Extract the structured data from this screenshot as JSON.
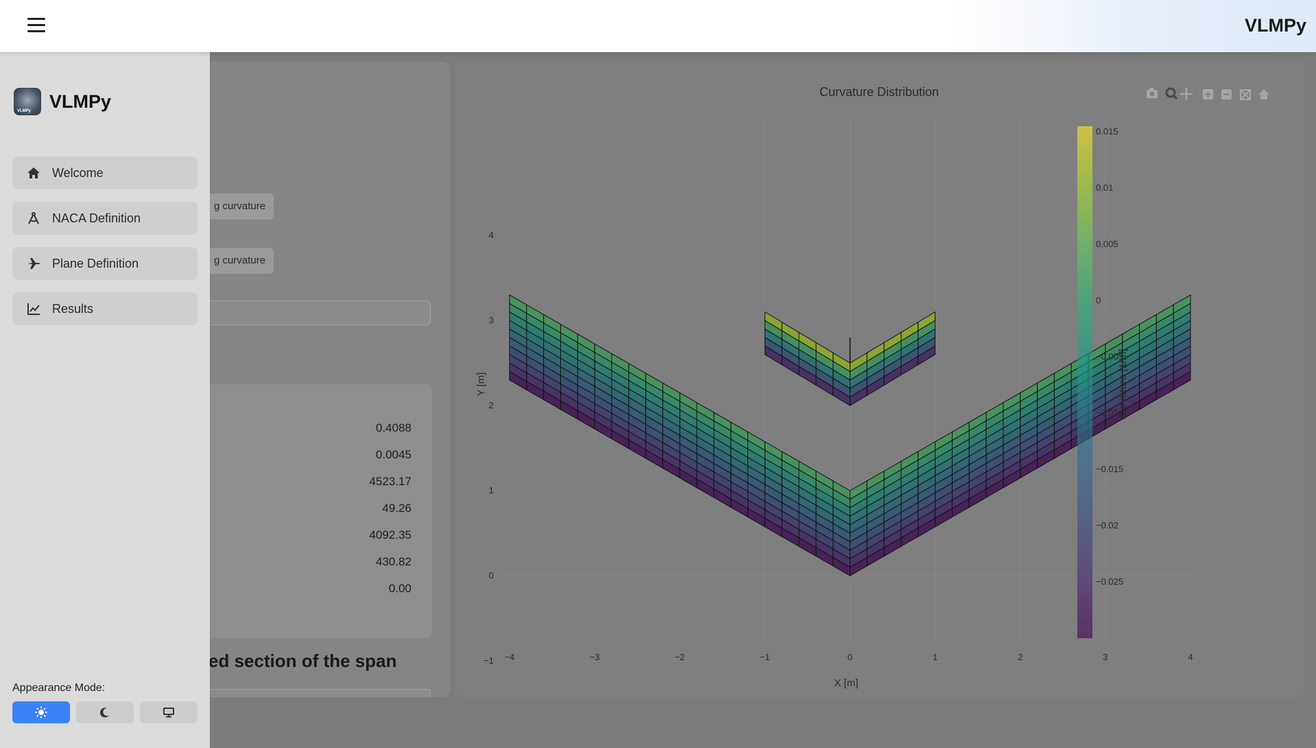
{
  "header": {
    "title": "VLMPy"
  },
  "sidebar": {
    "brand": "VLMPy",
    "items": [
      {
        "label": "Welcome",
        "icon": "home-icon"
      },
      {
        "label": "NACA Definition",
        "icon": "compass-icon"
      },
      {
        "label": "Plane Definition",
        "icon": "plane-icon"
      },
      {
        "label": "Results",
        "icon": "line-chart-icon"
      }
    ],
    "appearance_label": "Appearance Mode:",
    "modes": [
      {
        "name": "light",
        "icon": "sun-icon",
        "active": true
      },
      {
        "name": "dark",
        "icon": "moon-icon",
        "active": false
      },
      {
        "name": "system",
        "icon": "monitor-icon",
        "active": false
      }
    ]
  },
  "left_panel": {
    "chip1": "g curvature",
    "chip2": "g curvature",
    "results": [
      "0.4088",
      "0.0045",
      "4523.17",
      "49.26",
      "4092.35",
      "430.82",
      "0.00"
    ],
    "section_title": "ed section of the span"
  },
  "plot": {
    "toolbar_icons": [
      "camera-icon",
      "zoom-icon",
      "pan-icon",
      "zoom-in-icon",
      "zoom-out-icon",
      "autoscale-icon",
      "reset-axes-icon"
    ]
  },
  "chart_data": {
    "type": "heatmap",
    "title": "Curvature Distribution",
    "xlabel": "X [m]",
    "ylabel": "Y [m]",
    "xlim": [
      -4,
      4
    ],
    "ylim": [
      -1,
      4.5
    ],
    "x_ticks": [
      -4,
      -3,
      -2,
      -1,
      0,
      1,
      2,
      3,
      4
    ],
    "y_ticks": [
      -1,
      0,
      1,
      2,
      3,
      4
    ],
    "grid": true,
    "colorbar": {
      "title": "Curvature [1/m]",
      "range": [
        -0.03,
        0.0155
      ],
      "ticks": [
        0.015,
        0.01,
        0.005,
        0,
        -0.005,
        -0.01,
        -0.015,
        -0.02,
        -0.025
      ],
      "tick_labels": [
        "0.015",
        "0.01",
        "0.005",
        "0",
        "−0.005",
        "−0.01",
        "−0.015",
        "−0.02",
        "−0.025"
      ],
      "colorscale": "Viridis"
    },
    "surfaces": [
      {
        "name": "wing",
        "semispan": 4,
        "root_le_y": 1.0,
        "root_te_y": 0.0,
        "tip_le_y": 3.3,
        "tip_te_y": 2.3,
        "spanwise_panels": 40,
        "chordwise_panels": 10,
        "curvature_le": 0.004,
        "curvature_te": -0.03
      },
      {
        "name": "tail",
        "semispan": 1,
        "root_le_y": 2.5,
        "root_te_y": 2.0,
        "tip_le_y": 3.1,
        "tip_te_y": 2.6,
        "spanwise_panels": 10,
        "chordwise_panels": 5,
        "curvature_le": 0.015,
        "curvature_te": -0.03
      }
    ]
  }
}
